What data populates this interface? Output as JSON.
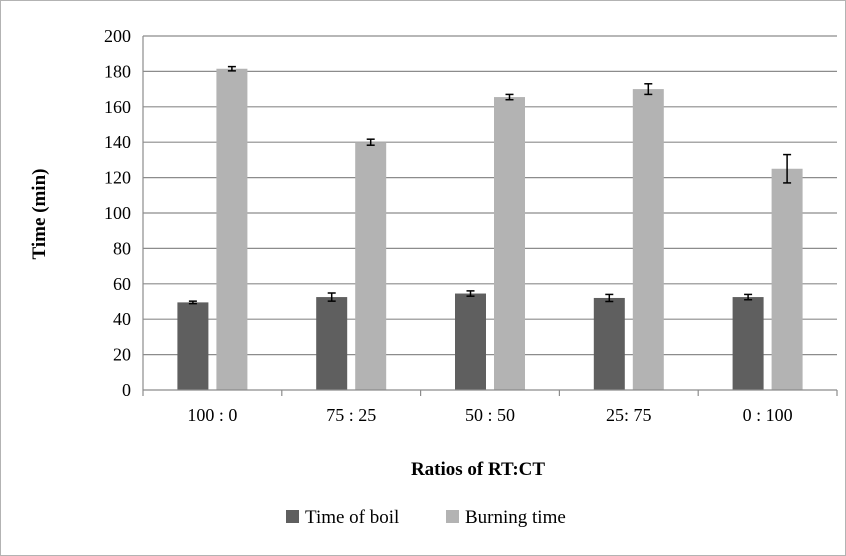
{
  "chart_data": {
    "type": "bar",
    "title": "",
    "xlabel": "Ratios of RT:CT",
    "ylabel": "Time (min)",
    "categories": [
      "100 : 0",
      "75 : 25",
      "50 : 50",
      "25: 75",
      "0 : 100"
    ],
    "ylim": [
      0,
      200
    ],
    "yticks": [
      0,
      20,
      40,
      60,
      80,
      100,
      120,
      140,
      160,
      180,
      200
    ],
    "grid": true,
    "legend_position": "bottom",
    "series": [
      {
        "name": "Time of boil",
        "color": "#5f5f5f",
        "values": [
          49.5,
          52.5,
          54.5,
          52,
          52.5
        ],
        "errors": [
          0.7,
          2.3,
          1.5,
          2,
          1.5
        ]
      },
      {
        "name": "Burning time",
        "color": "#b3b3b3",
        "values": [
          181.5,
          140,
          165.5,
          170,
          125
        ],
        "errors": [
          1.2,
          1.7,
          1.5,
          3,
          8
        ]
      }
    ]
  }
}
